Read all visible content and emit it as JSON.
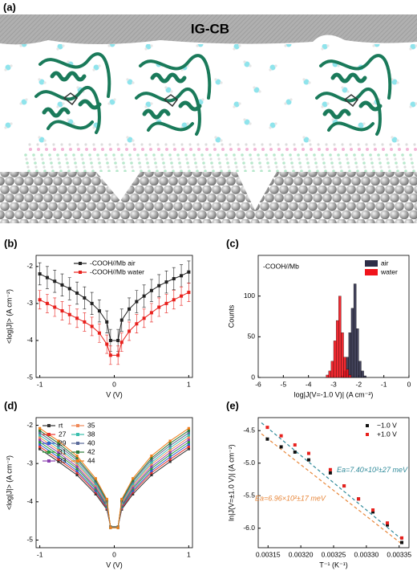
{
  "panel_a": {
    "label": "(a)",
    "text": "IG-CB"
  },
  "chart_data": [
    {
      "type": "line",
      "label": "(b)",
      "x_label": "V (V)",
      "y_label": "<log|J|> (A cm⁻²)",
      "x": [
        -1,
        -0.9,
        -0.8,
        -0.7,
        -0.6,
        -0.5,
        -0.4,
        -0.3,
        -0.2,
        -0.1,
        -0.05,
        0.05,
        0.1,
        0.2,
        0.3,
        0.4,
        0.5,
        0.6,
        0.7,
        0.8,
        0.9,
        1
      ],
      "series": [
        {
          "name": "-COOH//Mb air",
          "color": "#222222",
          "values": [
            -2.2,
            -2.3,
            -2.4,
            -2.5,
            -2.6,
            -2.72,
            -2.85,
            -3.0,
            -3.2,
            -3.5,
            -4.0,
            -4.0,
            -3.45,
            -3.15,
            -2.95,
            -2.8,
            -2.65,
            -2.52,
            -2.42,
            -2.33,
            -2.25,
            -2.15
          ],
          "errors": [
            0.3,
            0.3,
            0.3,
            0.3,
            0.3,
            0.3,
            0.3,
            0.3,
            0.3,
            0.3,
            0.3,
            0.3,
            0.3,
            0.3,
            0.3,
            0.3,
            0.3,
            0.3,
            0.3,
            0.3,
            0.3,
            0.3
          ]
        },
        {
          "name": "-COOH//Mb water",
          "color": "#e8201c",
          "values": [
            -2.9,
            -3.0,
            -3.1,
            -3.2,
            -3.3,
            -3.4,
            -3.5,
            -3.62,
            -3.8,
            -4.1,
            -4.4,
            -4.4,
            -4.05,
            -3.75,
            -3.55,
            -3.4,
            -3.25,
            -3.1,
            -3.0,
            -2.9,
            -2.8,
            -2.7
          ],
          "errors": [
            0.25,
            0.25,
            0.25,
            0.25,
            0.25,
            0.25,
            0.25,
            0.25,
            0.25,
            0.25,
            0.25,
            0.25,
            0.25,
            0.25,
            0.25,
            0.25,
            0.25,
            0.25,
            0.25,
            0.25,
            0.25,
            0.25
          ]
        }
      ],
      "xlim": [
        -1.05,
        1.05
      ],
      "xticks": [
        -1,
        0,
        1
      ],
      "ylim": [
        -5,
        -1.7
      ],
      "yticks": [
        -5,
        -4,
        -3,
        -2
      ],
      "legend": "upper center"
    },
    {
      "type": "histogram",
      "label": "(c)",
      "x_label": "log|J(V=-1.0 V)| (A cm⁻²)",
      "y_label": "Counts",
      "annotation": "-COOH//Mb",
      "bins": [
        -3.3,
        -3.2,
        -3.1,
        -3.0,
        -2.9,
        -2.8,
        -2.7,
        -2.6,
        -2.5,
        -2.4,
        -2.3,
        -2.2,
        -2.1,
        -2.0,
        -1.9,
        -1.8,
        -1.7
      ],
      "series": [
        {
          "name": "air",
          "color": "#2e2e48",
          "values": [
            0,
            0,
            0,
            0,
            0,
            0,
            2,
            8,
            25,
            55,
            85,
            115,
            60,
            20,
            8,
            2
          ]
        },
        {
          "name": "water",
          "color": "#f0141c",
          "values": [
            3,
            8,
            20,
            45,
            70,
            100,
            55,
            25,
            10,
            3,
            0,
            0,
            0,
            0,
            0,
            0
          ]
        }
      ],
      "xlim": [
        -6,
        0
      ],
      "xticks": [
        -6,
        -5,
        -4,
        -3,
        -2,
        -1,
        0
      ],
      "ylim": [
        0,
        150
      ],
      "yticks": [
        0,
        50,
        100
      ],
      "legend": "upper right"
    },
    {
      "type": "line",
      "label": "(d)",
      "x_label": "V (V)",
      "y_label": "<log|J|> (A cm⁻²)",
      "x": [
        -1,
        -0.75,
        -0.5,
        -0.25,
        -0.1,
        -0.05,
        0.05,
        0.1,
        0.25,
        0.5,
        0.75,
        1
      ],
      "series": [
        {
          "name": "rt",
          "color": "#333333",
          "values": [
            -2.62,
            -2.95,
            -3.3,
            -3.8,
            -4.2,
            -4.65,
            -4.65,
            -4.2,
            -3.8,
            -3.3,
            -2.95,
            -2.62
          ]
        },
        {
          "name": "27",
          "color": "#e8302a",
          "values": [
            -2.56,
            -2.89,
            -3.24,
            -3.75,
            -4.17,
            -4.65,
            -4.65,
            -4.17,
            -3.75,
            -3.24,
            -2.89,
            -2.56
          ]
        },
        {
          "name": "29",
          "color": "#2f5fd0",
          "values": [
            -2.5,
            -2.83,
            -3.19,
            -3.71,
            -4.14,
            -4.65,
            -4.65,
            -4.14,
            -3.71,
            -3.19,
            -2.83,
            -2.5
          ]
        },
        {
          "name": "31",
          "color": "#2a9d3a",
          "values": [
            -2.44,
            -2.77,
            -3.13,
            -3.66,
            -4.11,
            -4.65,
            -4.65,
            -4.11,
            -3.66,
            -3.13,
            -2.77,
            -2.44
          ]
        },
        {
          "name": "33",
          "color": "#8a3fb0",
          "values": [
            -2.38,
            -2.71,
            -3.08,
            -3.62,
            -4.08,
            -4.66,
            -4.66,
            -4.08,
            -3.62,
            -3.08,
            -2.71,
            -2.38
          ]
        },
        {
          "name": "35",
          "color": "#f08a5a",
          "values": [
            -2.32,
            -2.65,
            -3.02,
            -3.57,
            -4.05,
            -4.66,
            -4.66,
            -4.05,
            -3.57,
            -3.02,
            -2.65,
            -2.32
          ]
        },
        {
          "name": "38",
          "color": "#3bbfae",
          "values": [
            -2.26,
            -2.59,
            -2.97,
            -3.53,
            -4.02,
            -4.67,
            -4.67,
            -4.02,
            -3.53,
            -2.97,
            -2.59,
            -2.26
          ]
        },
        {
          "name": "40",
          "color": "#5a6a9a",
          "values": [
            -2.2,
            -2.53,
            -2.91,
            -3.48,
            -3.99,
            -4.67,
            -4.67,
            -3.99,
            -3.48,
            -2.91,
            -2.53,
            -2.2
          ]
        },
        {
          "name": "42",
          "color": "#2d7a3a",
          "values": [
            -2.14,
            -2.47,
            -2.86,
            -3.44,
            -3.96,
            -4.68,
            -4.68,
            -3.96,
            -3.44,
            -2.86,
            -2.47,
            -2.14
          ]
        },
        {
          "name": "44",
          "color": "#f07d1a",
          "values": [
            -2.08,
            -2.41,
            -2.8,
            -3.39,
            -3.93,
            -4.68,
            -4.68,
            -3.93,
            -3.39,
            -2.8,
            -2.41,
            -2.08
          ]
        }
      ],
      "xlim": [
        -1.05,
        1.05
      ],
      "xticks": [
        -1,
        0,
        1
      ],
      "ylim": [
        -5.2,
        -1.8
      ],
      "yticks": [
        -5,
        -4,
        -3,
        -2
      ],
      "legend": "upper left",
      "legend_columns": 2
    },
    {
      "type": "scatter",
      "label": "(e)",
      "x_label": "T⁻¹ (K⁻¹)",
      "y_label": "ln|J(V=±1.0 V)| (A cm⁻²)",
      "x": [
        0.003149,
        0.00317,
        0.003191,
        0.003212,
        0.003245,
        0.003266,
        0.003288,
        0.00331,
        0.003332,
        0.003354
      ],
      "series": [
        {
          "name": "−1.0 V",
          "color": "#111111",
          "values": [
            -4.63,
            -4.75,
            -4.83,
            -4.95,
            -5.15,
            -5.35,
            -5.55,
            -5.75,
            -5.95,
            -6.22
          ]
        },
        {
          "name": "+1.0 V",
          "color": "#e8201c",
          "values": [
            -4.45,
            -4.58,
            -4.72,
            -4.85,
            -5.1,
            -5.35,
            -5.55,
            -5.72,
            -5.92,
            -6.15
          ]
        }
      ],
      "fits": [
        {
          "label": "Ea=7.40×10²±27 meV",
          "color": "#2f8a9a",
          "x": [
            0.00314,
            0.003355
          ],
          "values": [
            -4.38,
            -6.18
          ]
        },
        {
          "label": "Ea=6.96×10²±17 meV",
          "color": "#e8873a",
          "x": [
            0.00314,
            0.003355
          ],
          "values": [
            -4.55,
            -6.25
          ]
        }
      ],
      "xlim": [
        0.003135,
        0.003365
      ],
      "xticks": [
        0.00315,
        {
          "value": 0.0032,
          "label": "0.00320"
        },
        0.00325,
        {
          "value": 0.0033,
          "label": "0.00330"
        },
        0.00335
      ],
      "ylim": [
        -6.3,
        -4.3
      ],
      "yticks": [
        -4.5,
        {
          "value": -5,
          "label": "-5.0"
        },
        -5.5,
        {
          "value": -6,
          "label": "-6.0"
        }
      ],
      "legend": "upper right"
    }
  ]
}
